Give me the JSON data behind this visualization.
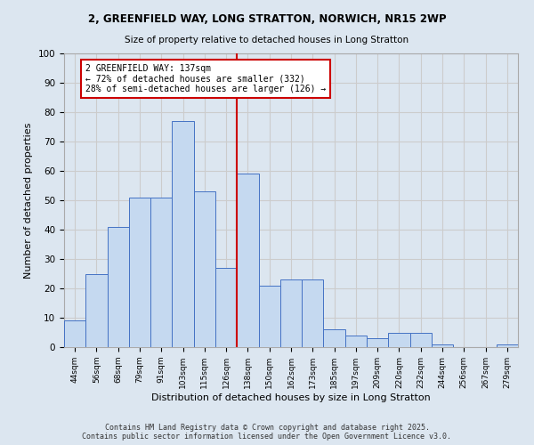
{
  "title1": "2, GREENFIELD WAY, LONG STRATTON, NORWICH, NR15 2WP",
  "title2": "Size of property relative to detached houses in Long Stratton",
  "xlabel": "Distribution of detached houses by size in Long Stratton",
  "ylabel": "Number of detached properties",
  "bar_labels": [
    "44sqm",
    "56sqm",
    "68sqm",
    "79sqm",
    "91sqm",
    "103sqm",
    "115sqm",
    "126sqm",
    "138sqm",
    "150sqm",
    "162sqm",
    "173sqm",
    "185sqm",
    "197sqm",
    "209sqm",
    "220sqm",
    "232sqm",
    "244sqm",
    "256sqm",
    "267sqm",
    "279sqm"
  ],
  "bar_values": [
    9,
    25,
    41,
    51,
    51,
    77,
    53,
    27,
    59,
    21,
    23,
    23,
    6,
    4,
    3,
    5,
    5,
    1,
    0,
    0,
    1
  ],
  "bar_color": "#c5d9f0",
  "bar_edge_color": "#4472c4",
  "annotation_line1": "2 GREENFIELD WAY: 137sqm",
  "annotation_line2": "← 72% of detached houses are smaller (332)",
  "annotation_line3": "28% of semi-detached houses are larger (126) →",
  "annotation_box_color": "#ffffff",
  "annotation_border_color": "#cc0000",
  "vline_color": "#cc0000",
  "vline_x_index": 8,
  "ylim": [
    0,
    100
  ],
  "yticks": [
    0,
    10,
    20,
    30,
    40,
    50,
    60,
    70,
    80,
    90,
    100
  ],
  "grid_color": "#cccccc",
  "background_color": "#dce6f0",
  "footer_line1": "Contains HM Land Registry data © Crown copyright and database right 2025.",
  "footer_line2": "Contains public sector information licensed under the Open Government Licence v3.0."
}
